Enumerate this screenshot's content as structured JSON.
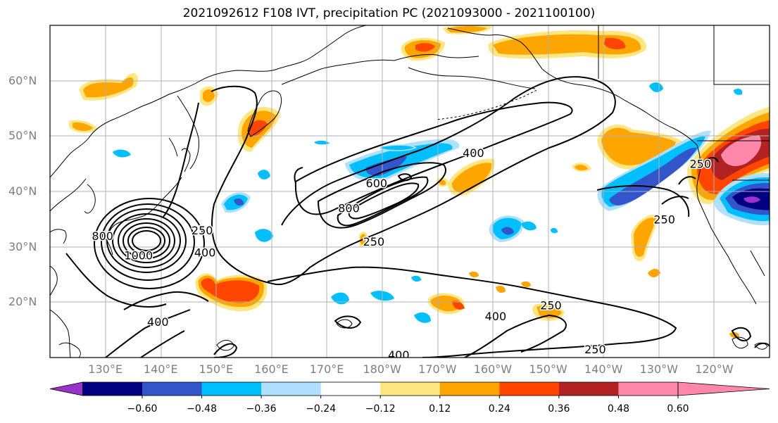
{
  "title": "2021092612 F108 IVT, precipitation PC (2021093000 - 2021100100)",
  "map": {
    "projection": "PlateCarree",
    "extent": {
      "lon_min": 120,
      "lon_max": 250,
      "lat_min": 10,
      "lat_max": 70
    },
    "gridlines": true,
    "lat_labels": [
      "60°N",
      "50°N",
      "40°N",
      "30°N",
      "20°N"
    ],
    "lon_labels": [
      "130°E",
      "140°E",
      "150°E",
      "160°E",
      "170°E",
      "180°W",
      "170°W",
      "160°W",
      "150°W",
      "140°W",
      "130°W",
      "120°W"
    ]
  },
  "ivt_contours": {
    "color": "#000000",
    "levels": [
      250,
      400,
      600,
      800,
      1000
    ],
    "labels": [
      {
        "text": "250",
        "lon": 147.5,
        "lat": 33
      },
      {
        "text": "400",
        "lon": 148,
        "lat": 29
      },
      {
        "text": "1000",
        "lon": 136,
        "lat": 28.5
      },
      {
        "text": "800",
        "lon": 129.5,
        "lat": 32
      },
      {
        "text": "400",
        "lon": 139.5,
        "lat": 16.5
      },
      {
        "text": "800",
        "lon": 174,
        "lat": 37
      },
      {
        "text": "600",
        "lon": 179,
        "lat": 41.5
      },
      {
        "text": "400",
        "lon": 196.5,
        "lat": 47
      },
      {
        "text": "250",
        "lon": 178.5,
        "lat": 31
      },
      {
        "text": "250",
        "lon": 210.5,
        "lat": 19.5
      },
      {
        "text": "400",
        "lon": 200.5,
        "lat": 17.5
      },
      {
        "text": "400",
        "lon": 183,
        "lat": 10.5
      },
      {
        "text": "250",
        "lon": 218.5,
        "lat": 11.5
      },
      {
        "text": "250",
        "lon": 231,
        "lat": 35
      },
      {
        "text": "250",
        "lon": 237.5,
        "lat": 45
      }
    ]
  },
  "precip_pc": {
    "colorbar": {
      "levels": [
        -0.6,
        -0.48,
        -0.36,
        -0.24,
        -0.12,
        0.12,
        0.24,
        0.36,
        0.48,
        0.6
      ],
      "tick_labels": [
        "−0.60",
        "−0.48",
        "−0.36",
        "−0.24",
        "−0.12",
        "0.12",
        "0.24",
        "0.36",
        "0.48",
        "0.60"
      ],
      "colors": [
        "#9933cc",
        "#000080",
        "#3355cc",
        "#00bfff",
        "#b0e0ff",
        "#ffffff",
        "#ffe680",
        "#ffa500",
        "#ff4500",
        "#b22222",
        "#ff88aa"
      ],
      "extend": "both"
    }
  }
}
